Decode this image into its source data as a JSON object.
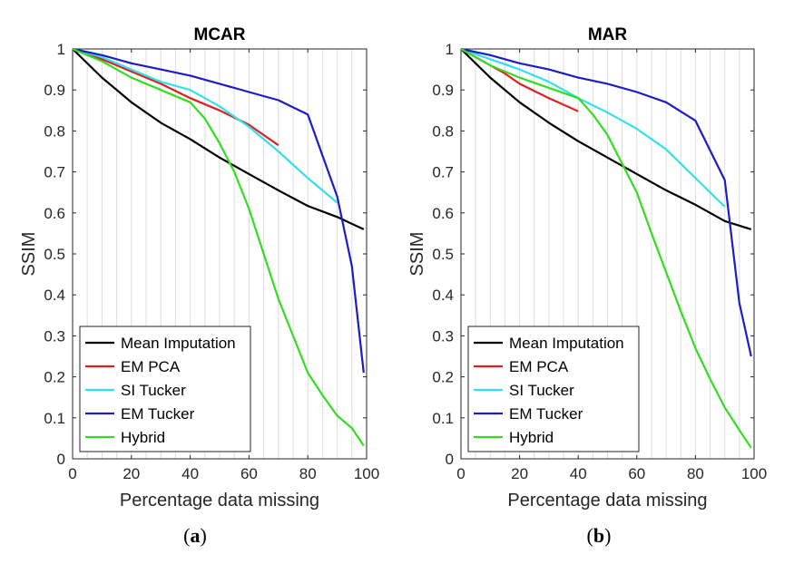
{
  "chart_data": [
    {
      "type": "line",
      "title": "MCAR",
      "xlabel": "Percentage data missing",
      "ylabel": "SSIM",
      "xlim": [
        0,
        100
      ],
      "ylim": [
        0,
        1
      ],
      "xticks": [
        0,
        20,
        40,
        60,
        80,
        100
      ],
      "yticks": [
        0,
        0.1,
        0.2,
        0.3,
        0.4,
        0.5,
        0.6,
        0.7,
        0.8,
        0.9,
        1
      ],
      "xtick_labels": [
        "0",
        "20",
        "40",
        "60",
        "80",
        "100"
      ],
      "ytick_labels": [
        "0",
        "0.1",
        "0.2",
        "0.3",
        "0.4",
        "0.5",
        "0.6",
        "0.7",
        "0.8",
        "0.9",
        "1"
      ],
      "grid": "vertical",
      "legend_position": "bottom-left",
      "caption_letter": "a",
      "series": [
        {
          "name": "Mean Imputation",
          "color": "#000000",
          "x": [
            0,
            10,
            20,
            30,
            40,
            50,
            60,
            70,
            80,
            90,
            99
          ],
          "y": [
            1.0,
            0.93,
            0.87,
            0.82,
            0.78,
            0.735,
            0.695,
            0.655,
            0.617,
            0.59,
            0.56
          ]
        },
        {
          "name": "EM PCA",
          "color": "#e02020",
          "x": [
            0,
            10,
            20,
            30,
            40,
            50,
            60,
            70
          ],
          "y": [
            1.0,
            0.975,
            0.945,
            0.915,
            0.88,
            0.85,
            0.815,
            0.765
          ]
        },
        {
          "name": "SI Tucker",
          "color": "#33e0ee",
          "x": [
            0,
            10,
            20,
            30,
            40,
            50,
            60,
            70,
            80,
            90
          ],
          "y": [
            1.0,
            0.98,
            0.95,
            0.92,
            0.9,
            0.86,
            0.81,
            0.75,
            0.685,
            0.625
          ]
        },
        {
          "name": "EM Tucker",
          "color": "#1c1cc8",
          "x": [
            0,
            10,
            20,
            30,
            40,
            50,
            60,
            70,
            80,
            90,
            95,
            99
          ],
          "y": [
            1.0,
            0.985,
            0.965,
            0.95,
            0.935,
            0.915,
            0.895,
            0.875,
            0.84,
            0.64,
            0.47,
            0.21
          ]
        },
        {
          "name": "Hybrid",
          "color": "#33dd22",
          "x": [
            0,
            10,
            20,
            30,
            40,
            45,
            50,
            55,
            60,
            65,
            70,
            75,
            80,
            85,
            90,
            95,
            99
          ],
          "y": [
            1.0,
            0.97,
            0.93,
            0.9,
            0.87,
            0.83,
            0.77,
            0.7,
            0.61,
            0.5,
            0.39,
            0.3,
            0.21,
            0.155,
            0.105,
            0.075,
            0.032
          ]
        }
      ]
    },
    {
      "type": "line",
      "title": "MAR",
      "xlabel": "Percentage data missing",
      "ylabel": "SSIM",
      "xlim": [
        0,
        100
      ],
      "ylim": [
        0,
        1
      ],
      "xticks": [
        0,
        20,
        40,
        60,
        80,
        100
      ],
      "yticks": [
        0,
        0.1,
        0.2,
        0.3,
        0.4,
        0.5,
        0.6,
        0.7,
        0.8,
        0.9,
        1
      ],
      "xtick_labels": [
        "0",
        "20",
        "40",
        "60",
        "80",
        "100"
      ],
      "ytick_labels": [
        "0",
        "0.1",
        "0.2",
        "0.3",
        "0.4",
        "0.5",
        "0.6",
        "0.7",
        "0.8",
        "0.9",
        "1"
      ],
      "grid": "vertical",
      "legend_position": "bottom-left",
      "caption_letter": "b",
      "series": [
        {
          "name": "Mean Imputation",
          "color": "#000000",
          "x": [
            0,
            10,
            20,
            30,
            40,
            50,
            60,
            70,
            80,
            90,
            99
          ],
          "y": [
            1.0,
            0.93,
            0.87,
            0.82,
            0.775,
            0.735,
            0.695,
            0.655,
            0.62,
            0.58,
            0.56
          ]
        },
        {
          "name": "EM PCA",
          "color": "#e02020",
          "x": [
            0,
            5,
            10,
            15,
            20,
            30,
            40
          ],
          "y": [
            1.0,
            0.98,
            0.96,
            0.94,
            0.915,
            0.88,
            0.848
          ]
        },
        {
          "name": "SI Tucker",
          "color": "#33e0ee",
          "x": [
            0,
            10,
            20,
            30,
            40,
            50,
            60,
            70,
            80,
            90
          ],
          "y": [
            1.0,
            0.975,
            0.95,
            0.92,
            0.88,
            0.845,
            0.805,
            0.755,
            0.685,
            0.615
          ]
        },
        {
          "name": "EM Tucker",
          "color": "#1c1cc8",
          "x": [
            0,
            10,
            20,
            30,
            40,
            50,
            60,
            70,
            80,
            90,
            95,
            99
          ],
          "y": [
            1.0,
            0.985,
            0.965,
            0.95,
            0.93,
            0.915,
            0.895,
            0.87,
            0.825,
            0.68,
            0.38,
            0.25
          ]
        },
        {
          "name": "Hybrid",
          "color": "#33dd22",
          "x": [
            0,
            10,
            20,
            30,
            40,
            45,
            50,
            55,
            60,
            65,
            70,
            75,
            80,
            85,
            90,
            95,
            99
          ],
          "y": [
            1.0,
            0.96,
            0.93,
            0.905,
            0.88,
            0.84,
            0.79,
            0.72,
            0.65,
            0.55,
            0.455,
            0.36,
            0.27,
            0.195,
            0.125,
            0.07,
            0.027
          ]
        }
      ]
    }
  ]
}
